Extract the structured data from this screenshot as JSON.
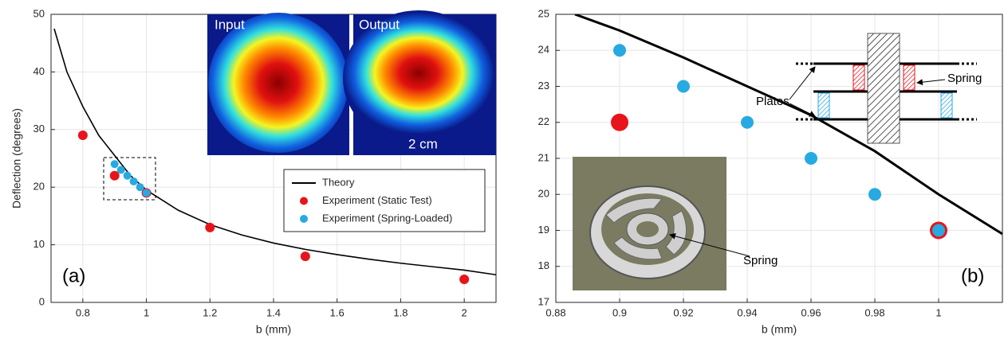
{
  "chart_data": [
    {
      "type": "scatter",
      "xlabel": "b (mm)",
      "ylabel": "Deflection (degrees)",
      "xlim": [
        0.7,
        2.1
      ],
      "ylim": [
        0,
        50
      ],
      "xticks": [
        0.8,
        1,
        1.2,
        1.4,
        1.6,
        1.8,
        2
      ],
      "yticks": [
        0,
        10,
        20,
        30,
        40,
        50
      ],
      "grid": true,
      "legend": "center right",
      "annotations": {
        "panel": "(a)",
        "input": "Input",
        "output": "Output",
        "scale": "2 cm"
      },
      "series": [
        {
          "name": "Theory",
          "mode": "line",
          "color": "#000000",
          "x": [
            0.71,
            0.75,
            0.8,
            0.85,
            0.9,
            0.95,
            1.0,
            1.1,
            1.2,
            1.3,
            1.4,
            1.5,
            1.6,
            1.7,
            1.8,
            1.9,
            2.0,
            2.1
          ],
          "y": [
            47.5,
            40,
            34,
            29,
            25.5,
            22,
            19.5,
            16,
            13.5,
            11.7,
            10.3,
            9.2,
            8.3,
            7.5,
            6.8,
            6.2,
            5.6,
            4.8
          ]
        },
        {
          "name": "Experiment (Static Test)",
          "mode": "markers",
          "color": "#e8141b",
          "x": [
            0.8,
            0.9,
            1,
            1.2,
            1.5,
            2
          ],
          "y": [
            29,
            22,
            19,
            13,
            8,
            4
          ]
        },
        {
          "name": "Experiment (Spring-Loaded)",
          "mode": "markers",
          "color": "#27aae1",
          "x": [
            0.9,
            0.92,
            0.94,
            0.96,
            0.98,
            1
          ],
          "y": [
            24,
            23,
            22,
            21,
            20,
            19
          ]
        }
      ]
    },
    {
      "type": "scatter",
      "xlabel": "b (mm)",
      "xlim": [
        0.88,
        1.02
      ],
      "ylim": [
        17,
        25
      ],
      "xticks": [
        0.88,
        0.9,
        0.92,
        0.94,
        0.96,
        0.98,
        1
      ],
      "yticks": [
        17,
        18,
        19,
        20,
        21,
        22,
        23,
        24,
        25
      ],
      "grid": true,
      "annotations": {
        "panel": "(b)",
        "plates": "Plates",
        "spring_diagram": "Spring",
        "spring_photo": "Spring"
      },
      "series": [
        {
          "mode": "line",
          "color": "#000000",
          "x": [
            0.886,
            0.9,
            0.92,
            0.94,
            0.96,
            0.98,
            1.0,
            1.02
          ],
          "y": [
            25,
            24.55,
            23.8,
            23.0,
            22.2,
            21.2,
            20.0,
            18.9
          ]
        },
        {
          "mode": "markers",
          "color": "#e8141b",
          "x": [
            0.9,
            1
          ],
          "y": [
            22,
            19
          ]
        },
        {
          "mode": "markers",
          "color": "#27aae1",
          "x": [
            0.9,
            0.92,
            0.94,
            0.96,
            0.98,
            1
          ],
          "y": [
            24,
            23,
            22,
            21,
            20,
            19
          ]
        }
      ]
    }
  ]
}
